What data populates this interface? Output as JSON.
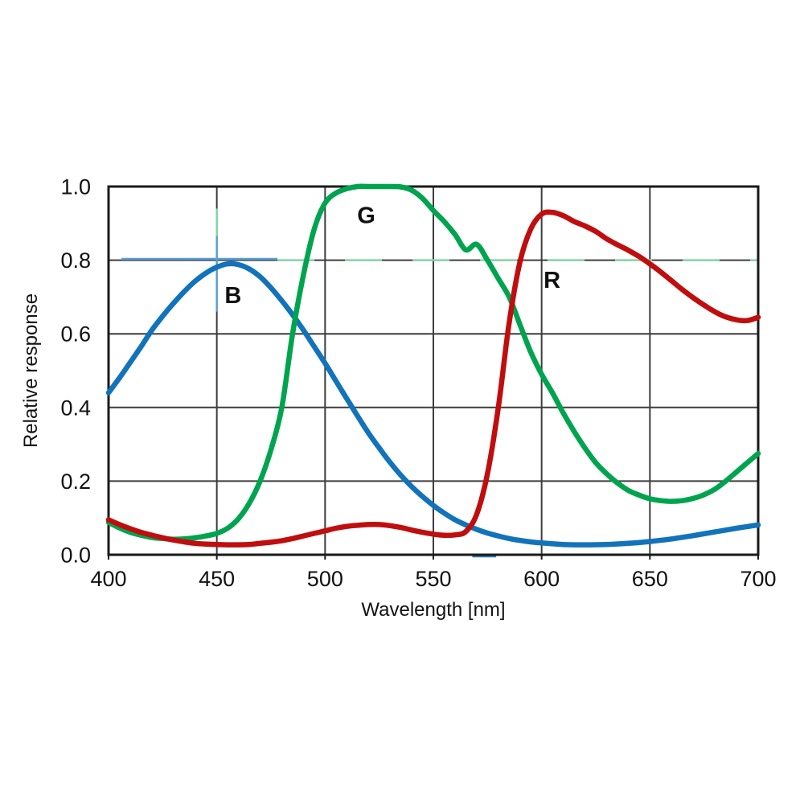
{
  "chart_data": {
    "type": "line",
    "title": "",
    "xlabel": "Wavelength [nm]",
    "ylabel": "Relative response",
    "xlim": [
      400,
      700
    ],
    "ylim": [
      0.0,
      1.0
    ],
    "x_ticks": [
      400,
      450,
      500,
      550,
      600,
      650,
      700
    ],
    "y_ticks": [
      0.0,
      0.2,
      0.4,
      0.6,
      0.8,
      1.0
    ],
    "grid": true,
    "legend_position": "inline-labels",
    "axis_color": "#1a1a1a",
    "grid_color": "#3d3d3d",
    "series": [
      {
        "name": "B",
        "color": "#1273bb",
        "label": {
          "text": "B",
          "x": 457.5,
          "y": 0.705
        },
        "points": [
          [
            400,
            0.44
          ],
          [
            405,
            0.48
          ],
          [
            410,
            0.522
          ],
          [
            415,
            0.565
          ],
          [
            420,
            0.61
          ],
          [
            425,
            0.648
          ],
          [
            430,
            0.683
          ],
          [
            435,
            0.715
          ],
          [
            440,
            0.743
          ],
          [
            445,
            0.765
          ],
          [
            450,
            0.781
          ],
          [
            455,
            0.79
          ],
          [
            460,
            0.788
          ],
          [
            465,
            0.776
          ],
          [
            470,
            0.755
          ],
          [
            475,
            0.725
          ],
          [
            480,
            0.69
          ],
          [
            485,
            0.652
          ],
          [
            490,
            0.61
          ],
          [
            495,
            0.565
          ],
          [
            500,
            0.52
          ],
          [
            505,
            0.472
          ],
          [
            510,
            0.424
          ],
          [
            515,
            0.377
          ],
          [
            520,
            0.331
          ],
          [
            525,
            0.29
          ],
          [
            530,
            0.251
          ],
          [
            535,
            0.216
          ],
          [
            540,
            0.185
          ],
          [
            545,
            0.158
          ],
          [
            550,
            0.134
          ],
          [
            555,
            0.113
          ],
          [
            560,
            0.095
          ],
          [
            565,
            0.081
          ],
          [
            570,
            0.069
          ],
          [
            575,
            0.059
          ],
          [
            580,
            0.051
          ],
          [
            585,
            0.044
          ],
          [
            590,
            0.039
          ],
          [
            595,
            0.035
          ],
          [
            600,
            0.032
          ],
          [
            610,
            0.028
          ],
          [
            620,
            0.027
          ],
          [
            630,
            0.028
          ],
          [
            640,
            0.031
          ],
          [
            650,
            0.036
          ],
          [
            660,
            0.043
          ],
          [
            670,
            0.052
          ],
          [
            680,
            0.062
          ],
          [
            690,
            0.072
          ],
          [
            700,
            0.081
          ]
        ]
      },
      {
        "name": "G",
        "color": "#00a44f",
        "label": {
          "text": "G",
          "x": 519,
          "y": 0.923
        },
        "points": [
          [
            400,
            0.088
          ],
          [
            405,
            0.073
          ],
          [
            410,
            0.061
          ],
          [
            415,
            0.053
          ],
          [
            420,
            0.047
          ],
          [
            425,
            0.044
          ],
          [
            430,
            0.042
          ],
          [
            435,
            0.043
          ],
          [
            440,
            0.046
          ],
          [
            445,
            0.051
          ],
          [
            450,
            0.058
          ],
          [
            455,
            0.072
          ],
          [
            460,
            0.098
          ],
          [
            465,
            0.14
          ],
          [
            470,
            0.2
          ],
          [
            475,
            0.285
          ],
          [
            480,
            0.4
          ],
          [
            485,
            0.6
          ],
          [
            490,
            0.76
          ],
          [
            495,
            0.885
          ],
          [
            500,
            0.955
          ],
          [
            505,
            0.982
          ],
          [
            510,
            0.994
          ],
          [
            515,
            1.0
          ],
          [
            520,
            1.0
          ],
          [
            525,
            1.0
          ],
          [
            530,
            1.0
          ],
          [
            535,
            0.999
          ],
          [
            540,
            0.99
          ],
          [
            545,
            0.968
          ],
          [
            550,
            0.935
          ],
          [
            555,
            0.905
          ],
          [
            560,
            0.87
          ],
          [
            565,
            0.828
          ],
          [
            570,
            0.843
          ],
          [
            575,
            0.8
          ],
          [
            580,
            0.75
          ],
          [
            585,
            0.7
          ],
          [
            590,
            0.625
          ],
          [
            595,
            0.55
          ],
          [
            600,
            0.49
          ],
          [
            605,
            0.44
          ],
          [
            610,
            0.385
          ],
          [
            615,
            0.335
          ],
          [
            620,
            0.29
          ],
          [
            625,
            0.25
          ],
          [
            630,
            0.22
          ],
          [
            635,
            0.195
          ],
          [
            640,
            0.175
          ],
          [
            645,
            0.162
          ],
          [
            650,
            0.152
          ],
          [
            655,
            0.147
          ],
          [
            660,
            0.145
          ],
          [
            665,
            0.147
          ],
          [
            670,
            0.153
          ],
          [
            675,
            0.163
          ],
          [
            680,
            0.178
          ],
          [
            685,
            0.2
          ],
          [
            690,
            0.225
          ],
          [
            695,
            0.25
          ],
          [
            700,
            0.275
          ]
        ]
      },
      {
        "name": "R",
        "color": "#c00d0e",
        "label": {
          "text": "R",
          "x": 604.8,
          "y": 0.747
        },
        "points": [
          [
            400,
            0.095
          ],
          [
            405,
            0.082
          ],
          [
            410,
            0.071
          ],
          [
            415,
            0.061
          ],
          [
            420,
            0.053
          ],
          [
            425,
            0.046
          ],
          [
            430,
            0.04
          ],
          [
            435,
            0.035
          ],
          [
            440,
            0.031
          ],
          [
            445,
            0.029
          ],
          [
            450,
            0.028
          ],
          [
            455,
            0.027
          ],
          [
            460,
            0.027
          ],
          [
            465,
            0.028
          ],
          [
            470,
            0.031
          ],
          [
            475,
            0.034
          ],
          [
            480,
            0.038
          ],
          [
            485,
            0.044
          ],
          [
            490,
            0.051
          ],
          [
            495,
            0.058
          ],
          [
            500,
            0.065
          ],
          [
            505,
            0.072
          ],
          [
            510,
            0.077
          ],
          [
            515,
            0.08
          ],
          [
            520,
            0.082
          ],
          [
            525,
            0.082
          ],
          [
            530,
            0.079
          ],
          [
            535,
            0.074
          ],
          [
            540,
            0.067
          ],
          [
            545,
            0.061
          ],
          [
            550,
            0.056
          ],
          [
            555,
            0.053
          ],
          [
            560,
            0.054
          ],
          [
            565,
            0.063
          ],
          [
            570,
            0.11
          ],
          [
            575,
            0.22
          ],
          [
            580,
            0.4
          ],
          [
            585,
            0.63
          ],
          [
            590,
            0.795
          ],
          [
            595,
            0.885
          ],
          [
            600,
            0.925
          ],
          [
            605,
            0.93
          ],
          [
            610,
            0.921
          ],
          [
            615,
            0.905
          ],
          [
            620,
            0.893
          ],
          [
            625,
            0.878
          ],
          [
            630,
            0.858
          ],
          [
            635,
            0.842
          ],
          [
            640,
            0.827
          ],
          [
            645,
            0.81
          ],
          [
            650,
            0.79
          ],
          [
            655,
            0.768
          ],
          [
            660,
            0.744
          ],
          [
            665,
            0.72
          ],
          [
            670,
            0.698
          ],
          [
            675,
            0.678
          ],
          [
            680,
            0.66
          ],
          [
            685,
            0.646
          ],
          [
            690,
            0.638
          ],
          [
            695,
            0.636
          ],
          [
            700,
            0.645
          ]
        ]
      }
    ],
    "highlight_lines": [
      {
        "id": "hline-blue-08-left",
        "orient": "h",
        "y": 0.8,
        "x1": 406,
        "x2": 478,
        "color": "#5b9fd4",
        "width": 2.6,
        "dy": -1.5
      },
      {
        "id": "hline-green-08-right",
        "orient": "h",
        "y": 0.8,
        "x1": 478,
        "x2": 700,
        "color": "#82d6a4",
        "width": 2.4,
        "dash": "46 38"
      },
      {
        "id": "vline-green-450-upper",
        "orient": "v",
        "x": 450,
        "y1": 0.865,
        "y2": 0.94,
        "color": "#82d6a4",
        "width": 2.4
      },
      {
        "id": "vline-blue-450",
        "orient": "v",
        "x": 450,
        "y1": 0.66,
        "y2": 0.865,
        "color": "#5b9fd4",
        "width": 2.4
      },
      {
        "id": "baseline-blue-mark",
        "orient": "h",
        "y": 0.0,
        "x1": 568,
        "x2": 579,
        "color": "#2a7bbd",
        "width": 3.4,
        "dy": 1.5
      }
    ]
  }
}
